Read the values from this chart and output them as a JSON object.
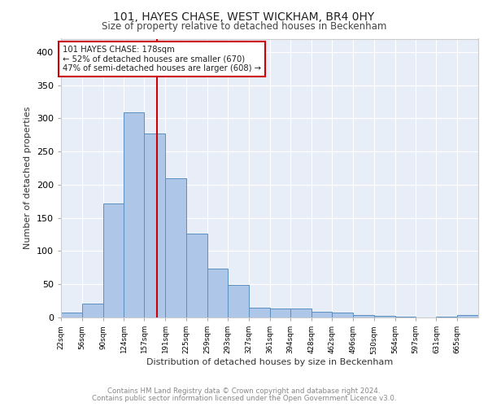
{
  "title1": "101, HAYES CHASE, WEST WICKHAM, BR4 0HY",
  "title2": "Size of property relative to detached houses in Beckenham",
  "xlabel": "Distribution of detached houses by size in Beckenham",
  "ylabel": "Number of detached properties",
  "bar_edges": [
    22,
    56,
    90,
    124,
    157,
    191,
    225,
    259,
    293,
    327,
    361,
    394,
    428,
    462,
    496,
    530,
    564,
    597,
    631,
    665,
    699
  ],
  "bar_heights": [
    7,
    21,
    172,
    309,
    277,
    210,
    126,
    74,
    49,
    15,
    13,
    13,
    8,
    7,
    4,
    2,
    1,
    0,
    1,
    4
  ],
  "bar_color": "#aec6e8",
  "bar_edge_color": "#5a8fc0",
  "property_line_x": 178,
  "property_line_color": "#cc0000",
  "annotation_text": "101 HAYES CHASE: 178sqm\n← 52% of detached houses are smaller (670)\n47% of semi-detached houses are larger (608) →",
  "annotation_box_color": "#ffffff",
  "annotation_box_edge": "#cc0000",
  "ylim": [
    0,
    420
  ],
  "yticks": [
    0,
    50,
    100,
    150,
    200,
    250,
    300,
    350,
    400
  ],
  "background_color": "#e8eef8",
  "grid_color": "#ffffff",
  "footer_line1": "Contains HM Land Registry data © Crown copyright and database right 2024.",
  "footer_line2": "Contains public sector information licensed under the Open Government Licence v3.0."
}
